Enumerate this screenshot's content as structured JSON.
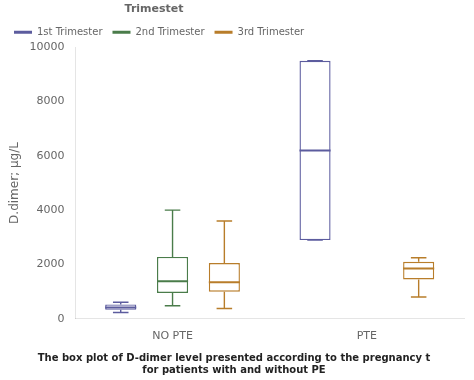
{
  "chart_data": {
    "type": "box",
    "y_label": "D.dimer; μg/L",
    "categories": [
      "NO PTE",
      "PTE"
    ],
    "legend_title": "Trimestet",
    "legend": "upper left",
    "grid": false,
    "ylim": [
      0,
      10000
    ],
    "yticks": [
      0,
      2000,
      4000,
      6000,
      8000,
      10000
    ],
    "series": [
      {
        "name": "1st Trimester",
        "color": "#5c5c9e",
        "values": [
          {
            "whislo": 230,
            "q1": 330,
            "med": 420,
            "q3": 530,
            "whishi": 610
          },
          {
            "whislo": 2900,
            "q1": 2900,
            "med": 6200,
            "q3": 9500,
            "whishi": 9500
          }
        ]
      },
      {
        "name": "2nd Trimester",
        "color": "#4a7c4a",
        "values": [
          {
            "whislo": 480,
            "q1": 950,
            "med": 1380,
            "q3": 2280,
            "whishi": 4000
          },
          null
        ]
      },
      {
        "name": "3rd Trimester",
        "color": "#b87d2a",
        "values": [
          {
            "whislo": 380,
            "q1": 1000,
            "med": 1350,
            "q3": 2050,
            "whishi": 3600
          },
          {
            "whislo": 800,
            "q1": 1450,
            "med": 1850,
            "q3": 2100,
            "whishi": 2250
          }
        ]
      }
    ],
    "annotations": [
      "The box plot of D-dimer level presented according to the pregnancy t",
      "for patients with and without PE"
    ]
  }
}
